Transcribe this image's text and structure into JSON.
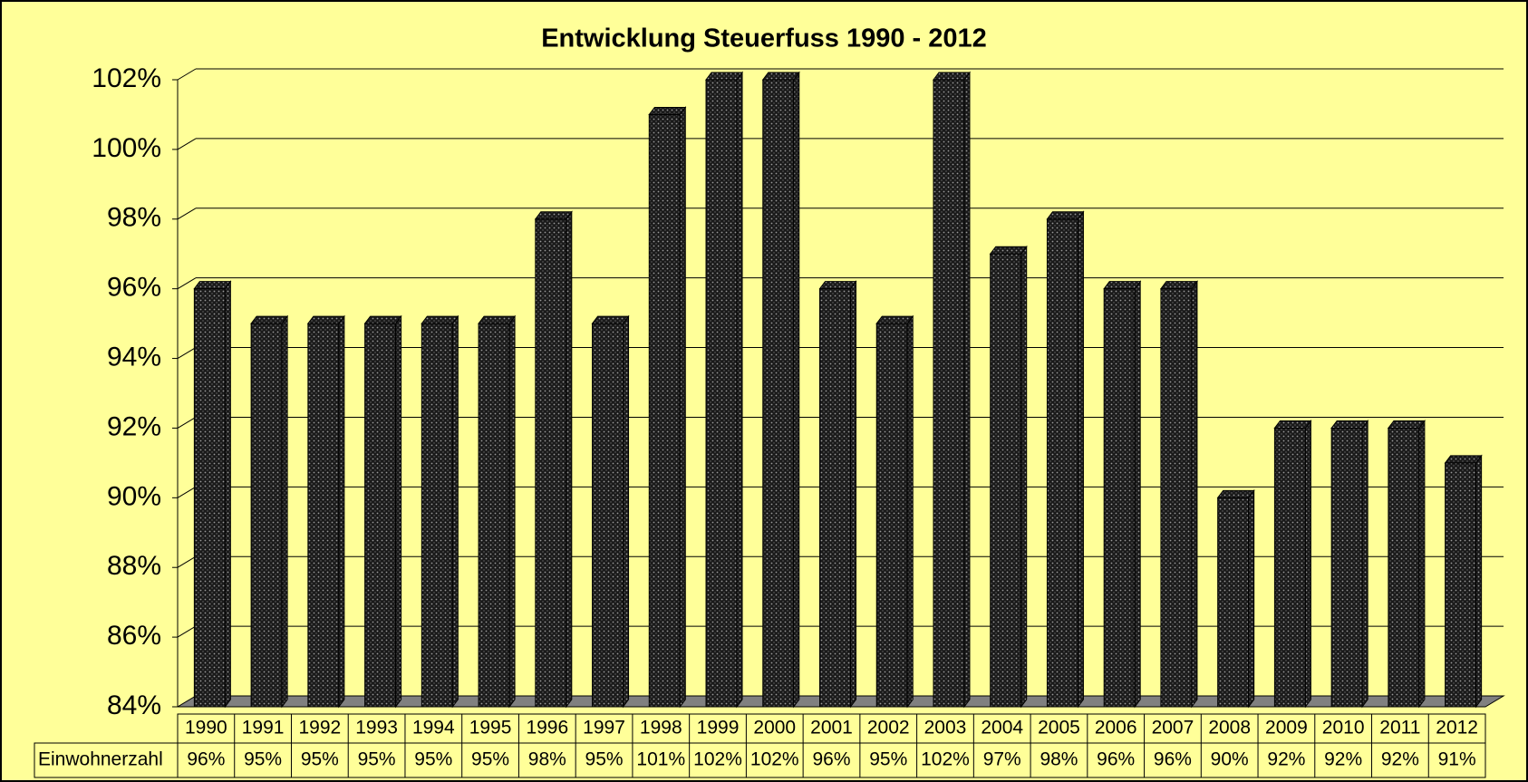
{
  "chart_data": {
    "type": "bar",
    "title": "Entwicklung Steuerfuss 1990 - 2012",
    "categories": [
      "1990",
      "1991",
      "1992",
      "1993",
      "1994",
      "1995",
      "1996",
      "1997",
      "1998",
      "1999",
      "2000",
      "2001",
      "2002",
      "2003",
      "2004",
      "2005",
      "2006",
      "2007",
      "2008",
      "2009",
      "2010",
      "2011",
      "2012"
    ],
    "series": [
      {
        "name": "Einwohnerzahl",
        "color": "#1a1a1a",
        "values": [
          96,
          95,
          95,
          95,
          95,
          95,
          98,
          95,
          101,
          102,
          102,
          96,
          95,
          102,
          97,
          98,
          96,
          96,
          90,
          92,
          92,
          92,
          91
        ],
        "value_labels": [
          "96%",
          "95%",
          "95%",
          "95%",
          "95%",
          "95%",
          "98%",
          "95%",
          "101%",
          "102%",
          "102%",
          "96%",
          "95%",
          "102%",
          "97%",
          "98%",
          "96%",
          "96%",
          "90%",
          "92%",
          "92%",
          "92%",
          "91%"
        ]
      }
    ],
    "ylim": [
      84,
      102
    ],
    "yticks": [
      {
        "value": 84,
        "label": "84%"
      },
      {
        "value": 86,
        "label": "86%"
      },
      {
        "value": 88,
        "label": "88%"
      },
      {
        "value": 90,
        "label": "90%"
      },
      {
        "value": 92,
        "label": "92%"
      },
      {
        "value": 94,
        "label": "94%"
      },
      {
        "value": 96,
        "label": "96%"
      },
      {
        "value": 98,
        "label": "98%"
      },
      {
        "value": 100,
        "label": "100%"
      },
      {
        "value": 102,
        "label": "102%"
      }
    ],
    "grid": true
  }
}
